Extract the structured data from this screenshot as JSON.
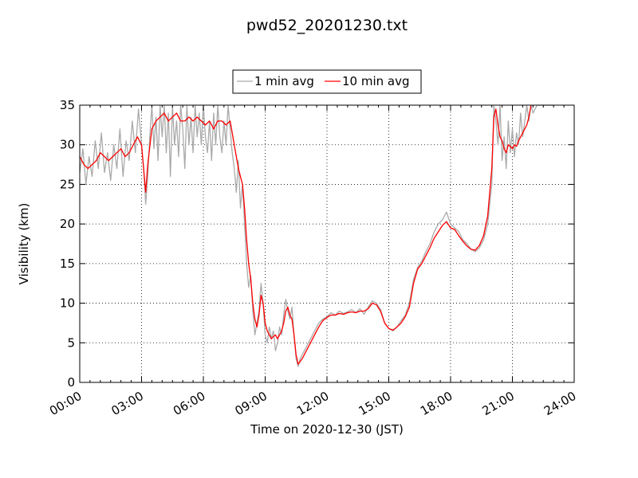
{
  "chart_data": {
    "type": "line",
    "title": "pwd52_20201230.txt",
    "xlabel": "Time on 2020-12-30 (JST)",
    "ylabel": "Visibility (km)",
    "x_unit": "hours",
    "xlim": [
      0,
      24
    ],
    "ylim": [
      0,
      35
    ],
    "x_tick_values": [
      0,
      3,
      6,
      9,
      12,
      15,
      18,
      21,
      24
    ],
    "x_tick_labels": [
      "00:00",
      "03:00",
      "06:00",
      "09:00",
      "12:00",
      "15:00",
      "18:00",
      "21:00",
      "24:00"
    ],
    "y_tick_values": [
      0,
      5,
      10,
      15,
      20,
      25,
      30,
      35
    ],
    "y_tick_labels": [
      "0",
      "5",
      "10",
      "15",
      "20",
      "25",
      "30",
      "35"
    ],
    "grid": true,
    "legend_position": "top-center",
    "series": [
      {
        "name": "1 min avg",
        "color": "#aaaaaa",
        "points": [
          [
            0.0,
            26.5
          ],
          [
            0.15,
            29.5
          ],
          [
            0.3,
            25.0
          ],
          [
            0.45,
            28.5
          ],
          [
            0.6,
            26.0
          ],
          [
            0.75,
            30.5
          ],
          [
            0.9,
            27.0
          ],
          [
            1.05,
            31.5
          ],
          [
            1.2,
            26.5
          ],
          [
            1.35,
            29.0
          ],
          [
            1.5,
            25.5
          ],
          [
            1.65,
            30.0
          ],
          [
            1.8,
            27.0
          ],
          [
            1.95,
            32.0
          ],
          [
            2.1,
            26.0
          ],
          [
            2.25,
            30.5
          ],
          [
            2.4,
            28.0
          ],
          [
            2.55,
            33.0
          ],
          [
            2.7,
            29.0
          ],
          [
            2.85,
            34.5
          ],
          [
            3.0,
            30.0
          ],
          [
            3.1,
            27.0
          ],
          [
            3.2,
            22.5
          ],
          [
            3.3,
            26.0
          ],
          [
            3.4,
            31.0
          ],
          [
            3.5,
            35.0
          ],
          [
            3.6,
            29.5
          ],
          [
            3.7,
            33.5
          ],
          [
            3.8,
            28.0
          ],
          [
            3.9,
            35.0
          ],
          [
            4.0,
            31.0
          ],
          [
            4.1,
            35.0
          ],
          [
            4.2,
            29.0
          ],
          [
            4.3,
            34.0
          ],
          [
            4.4,
            26.0
          ],
          [
            4.5,
            35.0
          ],
          [
            4.6,
            30.0
          ],
          [
            4.7,
            33.0
          ],
          [
            4.8,
            28.5
          ],
          [
            4.9,
            35.0
          ],
          [
            5.0,
            32.0
          ],
          [
            5.1,
            27.0
          ],
          [
            5.2,
            35.0
          ],
          [
            5.3,
            30.0
          ],
          [
            5.4,
            33.5
          ],
          [
            5.5,
            29.0
          ],
          [
            5.6,
            35.0
          ],
          [
            5.7,
            31.0
          ],
          [
            5.8,
            34.0
          ],
          [
            5.9,
            30.0
          ],
          [
            6.0,
            35.0
          ],
          [
            6.1,
            31.0
          ],
          [
            6.2,
            29.0
          ],
          [
            6.3,
            33.0
          ],
          [
            6.4,
            28.0
          ],
          [
            6.5,
            34.0
          ],
          [
            6.6,
            30.0
          ],
          [
            6.7,
            35.0
          ],
          [
            6.8,
            31.0
          ],
          [
            6.9,
            29.0
          ],
          [
            7.0,
            33.0
          ],
          [
            7.1,
            30.0
          ],
          [
            7.2,
            35.0
          ],
          [
            7.3,
            32.0
          ],
          [
            7.4,
            29.0
          ],
          [
            7.5,
            27.0
          ],
          [
            7.6,
            24.0
          ],
          [
            7.7,
            28.0
          ],
          [
            7.8,
            22.0
          ],
          [
            7.9,
            25.0
          ],
          [
            8.0,
            20.0
          ],
          [
            8.1,
            15.0
          ],
          [
            8.2,
            12.0
          ],
          [
            8.3,
            13.5
          ],
          [
            8.4,
            9.0
          ],
          [
            8.5,
            6.0
          ],
          [
            8.6,
            7.5
          ],
          [
            8.7,
            9.0
          ],
          [
            8.8,
            12.5
          ],
          [
            8.9,
            10.0
          ],
          [
            9.0,
            6.0
          ],
          [
            9.1,
            5.0
          ],
          [
            9.2,
            7.0
          ],
          [
            9.3,
            5.5
          ],
          [
            9.4,
            6.5
          ],
          [
            9.5,
            4.0
          ],
          [
            9.6,
            5.0
          ],
          [
            9.7,
            7.0
          ],
          [
            9.8,
            6.0
          ],
          [
            9.9,
            8.5
          ],
          [
            10.0,
            10.5
          ],
          [
            10.1,
            9.0
          ],
          [
            10.2,
            8.0
          ],
          [
            10.3,
            9.5
          ],
          [
            10.4,
            6.0
          ],
          [
            10.5,
            3.0
          ],
          [
            10.6,
            2.0
          ],
          [
            10.7,
            3.0
          ],
          [
            10.8,
            3.5
          ],
          [
            11.0,
            4.5
          ],
          [
            11.2,
            5.5
          ],
          [
            11.4,
            6.5
          ],
          [
            11.6,
            7.5
          ],
          [
            11.8,
            8.0
          ],
          [
            12.0,
            8.3
          ],
          [
            12.2,
            8.8
          ],
          [
            12.4,
            8.5
          ],
          [
            12.6,
            9.0
          ],
          [
            12.8,
            8.7
          ],
          [
            13.0,
            8.9
          ],
          [
            13.2,
            9.2
          ],
          [
            13.4,
            8.8
          ],
          [
            13.6,
            9.3
          ],
          [
            13.8,
            8.6
          ],
          [
            14.0,
            9.5
          ],
          [
            14.2,
            10.3
          ],
          [
            14.4,
            10.0
          ],
          [
            14.6,
            9.2
          ],
          [
            14.8,
            7.5
          ],
          [
            15.0,
            6.8
          ],
          [
            15.2,
            6.5
          ],
          [
            15.4,
            7.0
          ],
          [
            15.6,
            7.8
          ],
          [
            15.8,
            8.5
          ],
          [
            16.0,
            10.0
          ],
          [
            16.2,
            13.0
          ],
          [
            16.4,
            14.5
          ],
          [
            16.6,
            15.3
          ],
          [
            16.8,
            16.5
          ],
          [
            17.0,
            17.5
          ],
          [
            17.2,
            19.0
          ],
          [
            17.4,
            20.0
          ],
          [
            17.6,
            20.5
          ],
          [
            17.8,
            21.5
          ],
          [
            18.0,
            20.0
          ],
          [
            18.2,
            19.5
          ],
          [
            18.4,
            19.0
          ],
          [
            18.6,
            18.0
          ],
          [
            18.8,
            17.5
          ],
          [
            19.0,
            16.8
          ],
          [
            19.2,
            16.5
          ],
          [
            19.4,
            17.0
          ],
          [
            19.6,
            18.0
          ],
          [
            19.8,
            20.0
          ],
          [
            20.0,
            25.0
          ],
          [
            20.1,
            35.0
          ],
          [
            20.2,
            33.0
          ],
          [
            20.3,
            30.0
          ],
          [
            20.4,
            35.0
          ],
          [
            20.5,
            28.0
          ],
          [
            20.6,
            31.0
          ],
          [
            20.7,
            27.0
          ],
          [
            20.8,
            33.0
          ],
          [
            20.9,
            29.0
          ],
          [
            21.0,
            32.0
          ],
          [
            21.1,
            28.5
          ],
          [
            21.2,
            31.5
          ],
          [
            21.3,
            30.0
          ],
          [
            21.4,
            34.0
          ],
          [
            21.5,
            31.0
          ],
          [
            21.6,
            33.0
          ],
          [
            21.7,
            35.0
          ],
          [
            21.8,
            33.0
          ],
          [
            21.9,
            35.0
          ],
          [
            22.0,
            34.0
          ],
          [
            22.2,
            35.0
          ],
          [
            22.4,
            35.0
          ],
          [
            22.6,
            35.0
          ],
          [
            22.8,
            35.0
          ],
          [
            23.0,
            35.0
          ]
        ]
      },
      {
        "name": "10 min avg",
        "color": "#ff0000",
        "points": [
          [
            0.0,
            28.5
          ],
          [
            0.2,
            27.5
          ],
          [
            0.4,
            27.0
          ],
          [
            0.6,
            27.5
          ],
          [
            0.8,
            28.0
          ],
          [
            1.0,
            29.0
          ],
          [
            1.2,
            28.5
          ],
          [
            1.4,
            28.0
          ],
          [
            1.6,
            28.5
          ],
          [
            1.8,
            29.0
          ],
          [
            2.0,
            29.5
          ],
          [
            2.2,
            28.5
          ],
          [
            2.4,
            29.0
          ],
          [
            2.6,
            30.0
          ],
          [
            2.8,
            31.0
          ],
          [
            3.0,
            30.0
          ],
          [
            3.1,
            27.0
          ],
          [
            3.2,
            24.0
          ],
          [
            3.3,
            27.5
          ],
          [
            3.5,
            32.0
          ],
          [
            3.7,
            33.0
          ],
          [
            3.9,
            33.5
          ],
          [
            4.1,
            34.0
          ],
          [
            4.3,
            33.0
          ],
          [
            4.5,
            33.5
          ],
          [
            4.7,
            34.0
          ],
          [
            4.9,
            33.0
          ],
          [
            5.1,
            33.0
          ],
          [
            5.3,
            33.5
          ],
          [
            5.5,
            33.0
          ],
          [
            5.7,
            33.5
          ],
          [
            5.9,
            33.0
          ],
          [
            6.1,
            32.5
          ],
          [
            6.3,
            33.0
          ],
          [
            6.5,
            32.0
          ],
          [
            6.7,
            33.0
          ],
          [
            6.9,
            33.0
          ],
          [
            7.1,
            32.5
          ],
          [
            7.3,
            33.0
          ],
          [
            7.5,
            30.0
          ],
          [
            7.7,
            27.0
          ],
          [
            7.9,
            25.0
          ],
          [
            8.0,
            22.0
          ],
          [
            8.1,
            18.0
          ],
          [
            8.2,
            15.0
          ],
          [
            8.3,
            13.0
          ],
          [
            8.4,
            10.0
          ],
          [
            8.5,
            8.0
          ],
          [
            8.6,
            7.0
          ],
          [
            8.7,
            8.5
          ],
          [
            8.8,
            11.0
          ],
          [
            8.9,
            10.0
          ],
          [
            9.0,
            7.5
          ],
          [
            9.1,
            6.5
          ],
          [
            9.2,
            6.0
          ],
          [
            9.3,
            5.5
          ],
          [
            9.4,
            5.8
          ],
          [
            9.5,
            6.0
          ],
          [
            9.6,
            5.5
          ],
          [
            9.7,
            6.0
          ],
          [
            9.8,
            6.5
          ],
          [
            9.9,
            7.5
          ],
          [
            10.0,
            9.0
          ],
          [
            10.1,
            9.5
          ],
          [
            10.2,
            8.5
          ],
          [
            10.3,
            8.0
          ],
          [
            10.4,
            6.0
          ],
          [
            10.5,
            3.5
          ],
          [
            10.6,
            2.3
          ],
          [
            10.8,
            3.0
          ],
          [
            11.0,
            4.0
          ],
          [
            11.2,
            5.0
          ],
          [
            11.4,
            6.0
          ],
          [
            11.6,
            7.0
          ],
          [
            11.8,
            7.8
          ],
          [
            12.0,
            8.2
          ],
          [
            12.2,
            8.5
          ],
          [
            12.4,
            8.5
          ],
          [
            12.6,
            8.7
          ],
          [
            12.8,
            8.6
          ],
          [
            13.0,
            8.8
          ],
          [
            13.2,
            8.9
          ],
          [
            13.4,
            8.8
          ],
          [
            13.6,
            9.0
          ],
          [
            13.8,
            9.0
          ],
          [
            14.0,
            9.3
          ],
          [
            14.2,
            10.0
          ],
          [
            14.4,
            9.8
          ],
          [
            14.6,
            9.0
          ],
          [
            14.8,
            7.5
          ],
          [
            15.0,
            6.8
          ],
          [
            15.2,
            6.6
          ],
          [
            15.4,
            7.0
          ],
          [
            15.6,
            7.5
          ],
          [
            15.8,
            8.3
          ],
          [
            16.0,
            9.5
          ],
          [
            16.2,
            12.5
          ],
          [
            16.4,
            14.3
          ],
          [
            16.6,
            15.0
          ],
          [
            16.8,
            16.0
          ],
          [
            17.0,
            17.0
          ],
          [
            17.2,
            18.2
          ],
          [
            17.4,
            19.0
          ],
          [
            17.6,
            19.8
          ],
          [
            17.8,
            20.3
          ],
          [
            18.0,
            19.5
          ],
          [
            18.2,
            19.3
          ],
          [
            18.4,
            18.5
          ],
          [
            18.6,
            17.8
          ],
          [
            18.8,
            17.2
          ],
          [
            19.0,
            16.8
          ],
          [
            19.2,
            16.7
          ],
          [
            19.4,
            17.3
          ],
          [
            19.6,
            18.5
          ],
          [
            19.8,
            21.0
          ],
          [
            20.0,
            27.0
          ],
          [
            20.1,
            33.5
          ],
          [
            20.2,
            34.5
          ],
          [
            20.3,
            32.5
          ],
          [
            20.4,
            31.0
          ],
          [
            20.5,
            30.5
          ],
          [
            20.6,
            29.5
          ],
          [
            20.7,
            29.0
          ],
          [
            20.8,
            30.0
          ],
          [
            20.9,
            29.8
          ],
          [
            21.0,
            29.5
          ],
          [
            21.1,
            30.0
          ],
          [
            21.2,
            29.8
          ],
          [
            21.3,
            30.5
          ],
          [
            21.4,
            31.0
          ],
          [
            21.5,
            31.5
          ],
          [
            21.6,
            32.0
          ],
          [
            21.7,
            32.5
          ],
          [
            21.8,
            33.5
          ],
          [
            21.9,
            35.0
          ]
        ]
      }
    ]
  }
}
